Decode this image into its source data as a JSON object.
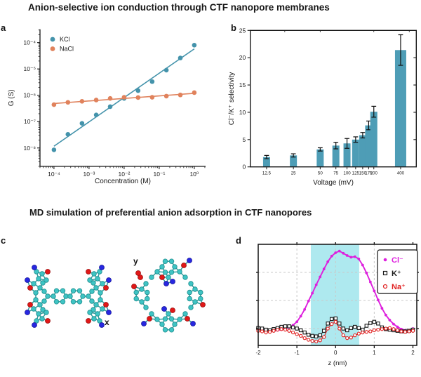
{
  "figure": {
    "title": "Anion-selective ion conduction through CTF nanopore membranes",
    "section_heading": "MD simulation of preferential anion adsorption in CTF nanopores",
    "panel_labels": {
      "a": "a",
      "b": "b",
      "c": "c",
      "d": "d"
    }
  },
  "colors": {
    "text": "#171717",
    "kcl_teal": "#4493ab",
    "nacl_orange": "#e0825c",
    "bar_teal": "#4e9db6",
    "cl_magenta": "#dd1fdd",
    "k_black": "#1a1a1a",
    "na_red": "#e02020",
    "pore_band_cyan": "#aee9ef"
  },
  "panel_c": {
    "view_labels": {
      "side": "x",
      "top": "y"
    }
  },
  "chart_data": [
    {
      "panel": "a",
      "type": "scatter",
      "xlabel": "Concentration (M)",
      "ylabel": "G (S)",
      "xscale": "log",
      "yscale": "log",
      "xlim": [
        4e-05,
        2.1
      ],
      "ylim": [
        2e-09,
        0.00032
      ],
      "xticks": [
        0.0001,
        0.001,
        0.01,
        0.1,
        1
      ],
      "xtick_labels": [
        "10⁻⁴",
        "10⁻³",
        "10⁻²",
        "10⁻¹",
        "10⁰"
      ],
      "yticks": [
        1e-08,
        1e-07,
        1e-06,
        1e-05,
        0.0001
      ],
      "ytick_labels": [
        "10⁻⁸",
        "10⁻⁷",
        "10⁻⁶",
        "10⁻⁵",
        "10⁻⁴"
      ],
      "legend_position": "upper left",
      "series": [
        {
          "name": "KCl",
          "color": "#4493ab",
          "marker": "circle",
          "x": [
            0.0001,
            0.00025,
            0.00063,
            0.0016,
            0.004,
            0.01,
            0.025,
            0.063,
            0.16,
            0.4,
            1.0
          ],
          "y": [
            8.5e-09,
            3.3e-08,
            8.6e-08,
            1.8e-07,
            3.7e-07,
            7.6e-07,
            1.5e-06,
            3.3e-06,
            9e-06,
            2.6e-05,
            8e-05
          ]
        },
        {
          "name": "NaCl",
          "color": "#e0825c",
          "marker": "circle",
          "x": [
            0.0001,
            0.00025,
            0.00063,
            0.0016,
            0.004,
            0.01,
            0.025,
            0.063,
            0.16,
            0.4,
            1.0
          ],
          "y": [
            4.4e-07,
            5.4e-07,
            5.9e-07,
            6.6e-07,
            7.6e-07,
            8.4e-07,
            8.2e-07,
            8.4e-07,
            9.3e-07,
            1.03e-06,
            1.26e-06
          ]
        }
      ]
    },
    {
      "panel": "b",
      "type": "bar",
      "xlabel": "Voltage (mV)",
      "ylabel": "Cl⁻/K⁺ selectivity",
      "xscale": "log",
      "xlim": [
        8.2,
        600
      ],
      "categories": [
        "12.5",
        "25",
        "50",
        "75",
        "100",
        "125",
        "150",
        "175",
        "200",
        "400"
      ],
      "x": [
        12.5,
        25,
        50,
        75,
        100,
        125,
        150,
        175,
        200,
        400
      ],
      "values": [
        1.8,
        2.1,
        3.2,
        3.9,
        4.3,
        5.0,
        5.8,
        7.6,
        10.1,
        21.4
      ],
      "errors": [
        0.3,
        0.3,
        0.3,
        0.6,
        0.9,
        0.5,
        0.5,
        0.8,
        1.0,
        2.8
      ],
      "bar_color": "#4e9db6",
      "ylim": [
        0,
        25
      ],
      "yticks": [
        0,
        5,
        10,
        15,
        20,
        25
      ]
    },
    {
      "panel": "d",
      "type": "line",
      "xlabel": "z (nm)",
      "ylabel": "",
      "xlim": [
        -2.0,
        2.1
      ],
      "ylim": [
        -0.05,
        1.75
      ],
      "xticks": [
        -2,
        -1,
        0,
        1,
        2
      ],
      "xtick_labels": [
        "-2",
        "-1",
        "0",
        "1",
        "2"
      ],
      "yticks": [
        0.25,
        0.75,
        1.25
      ],
      "grid": true,
      "highlight_band": {
        "x0": -0.64,
        "x1": 0.61,
        "color": "#aee9ef"
      },
      "z": [
        -2.0,
        -1.9,
        -1.8,
        -1.7,
        -1.6,
        -1.5,
        -1.4,
        -1.3,
        -1.2,
        -1.1,
        -1.0,
        -0.9,
        -0.8,
        -0.7,
        -0.6,
        -0.5,
        -0.4,
        -0.3,
        -0.2,
        -0.1,
        0.0,
        0.1,
        0.2,
        0.3,
        0.4,
        0.5,
        0.6,
        0.7,
        0.8,
        0.9,
        1.0,
        1.1,
        1.2,
        1.3,
        1.4,
        1.5,
        1.6,
        1.7,
        1.8,
        1.9,
        2.0
      ],
      "series": [
        {
          "name": "Cl⁻",
          "color": "#dd1fdd",
          "marker": "filled-circle",
          "values": [
            0.25,
            0.24,
            0.22,
            0.21,
            0.21,
            0.22,
            0.23,
            0.25,
            0.27,
            0.31,
            0.37,
            0.47,
            0.59,
            0.74,
            0.88,
            1.03,
            1.17,
            1.31,
            1.44,
            1.54,
            1.6,
            1.63,
            1.59,
            1.55,
            1.52,
            1.53,
            1.49,
            1.38,
            1.24,
            1.08,
            0.92,
            0.76,
            0.61,
            0.49,
            0.4,
            0.33,
            0.28,
            0.24,
            0.22,
            0.21,
            0.25
          ]
        },
        {
          "name": "K⁺",
          "color": "#1a1a1a",
          "marker": "open-square",
          "values": [
            0.26,
            0.25,
            0.23,
            0.22,
            0.24,
            0.26,
            0.28,
            0.29,
            0.29,
            0.27,
            0.25,
            0.22,
            0.18,
            0.14,
            0.12,
            0.11,
            0.13,
            0.21,
            0.34,
            0.42,
            0.43,
            0.34,
            0.25,
            0.22,
            0.26,
            0.28,
            0.26,
            0.23,
            0.3,
            0.35,
            0.37,
            0.34,
            0.27,
            0.24,
            0.23,
            0.22,
            0.21,
            0.2,
            0.2,
            0.21,
            0.23
          ]
        },
        {
          "name": "Na⁺",
          "color": "#e02020",
          "marker": "open-circle",
          "values": [
            0.21,
            0.2,
            0.18,
            0.19,
            0.21,
            0.23,
            0.24,
            0.23,
            0.21,
            0.18,
            0.15,
            0.12,
            0.08,
            0.05,
            0.03,
            0.02,
            0.04,
            0.1,
            0.25,
            0.33,
            0.37,
            0.25,
            0.13,
            0.08,
            0.09,
            0.13,
            0.16,
            0.18,
            0.19,
            0.2,
            0.22,
            0.23,
            0.24,
            0.25,
            0.26,
            0.24,
            0.22,
            0.2,
            0.19,
            0.2,
            0.21
          ]
        }
      ],
      "legend": [
        "Cl⁻",
        "K⁺",
        "Na⁺"
      ]
    }
  ]
}
